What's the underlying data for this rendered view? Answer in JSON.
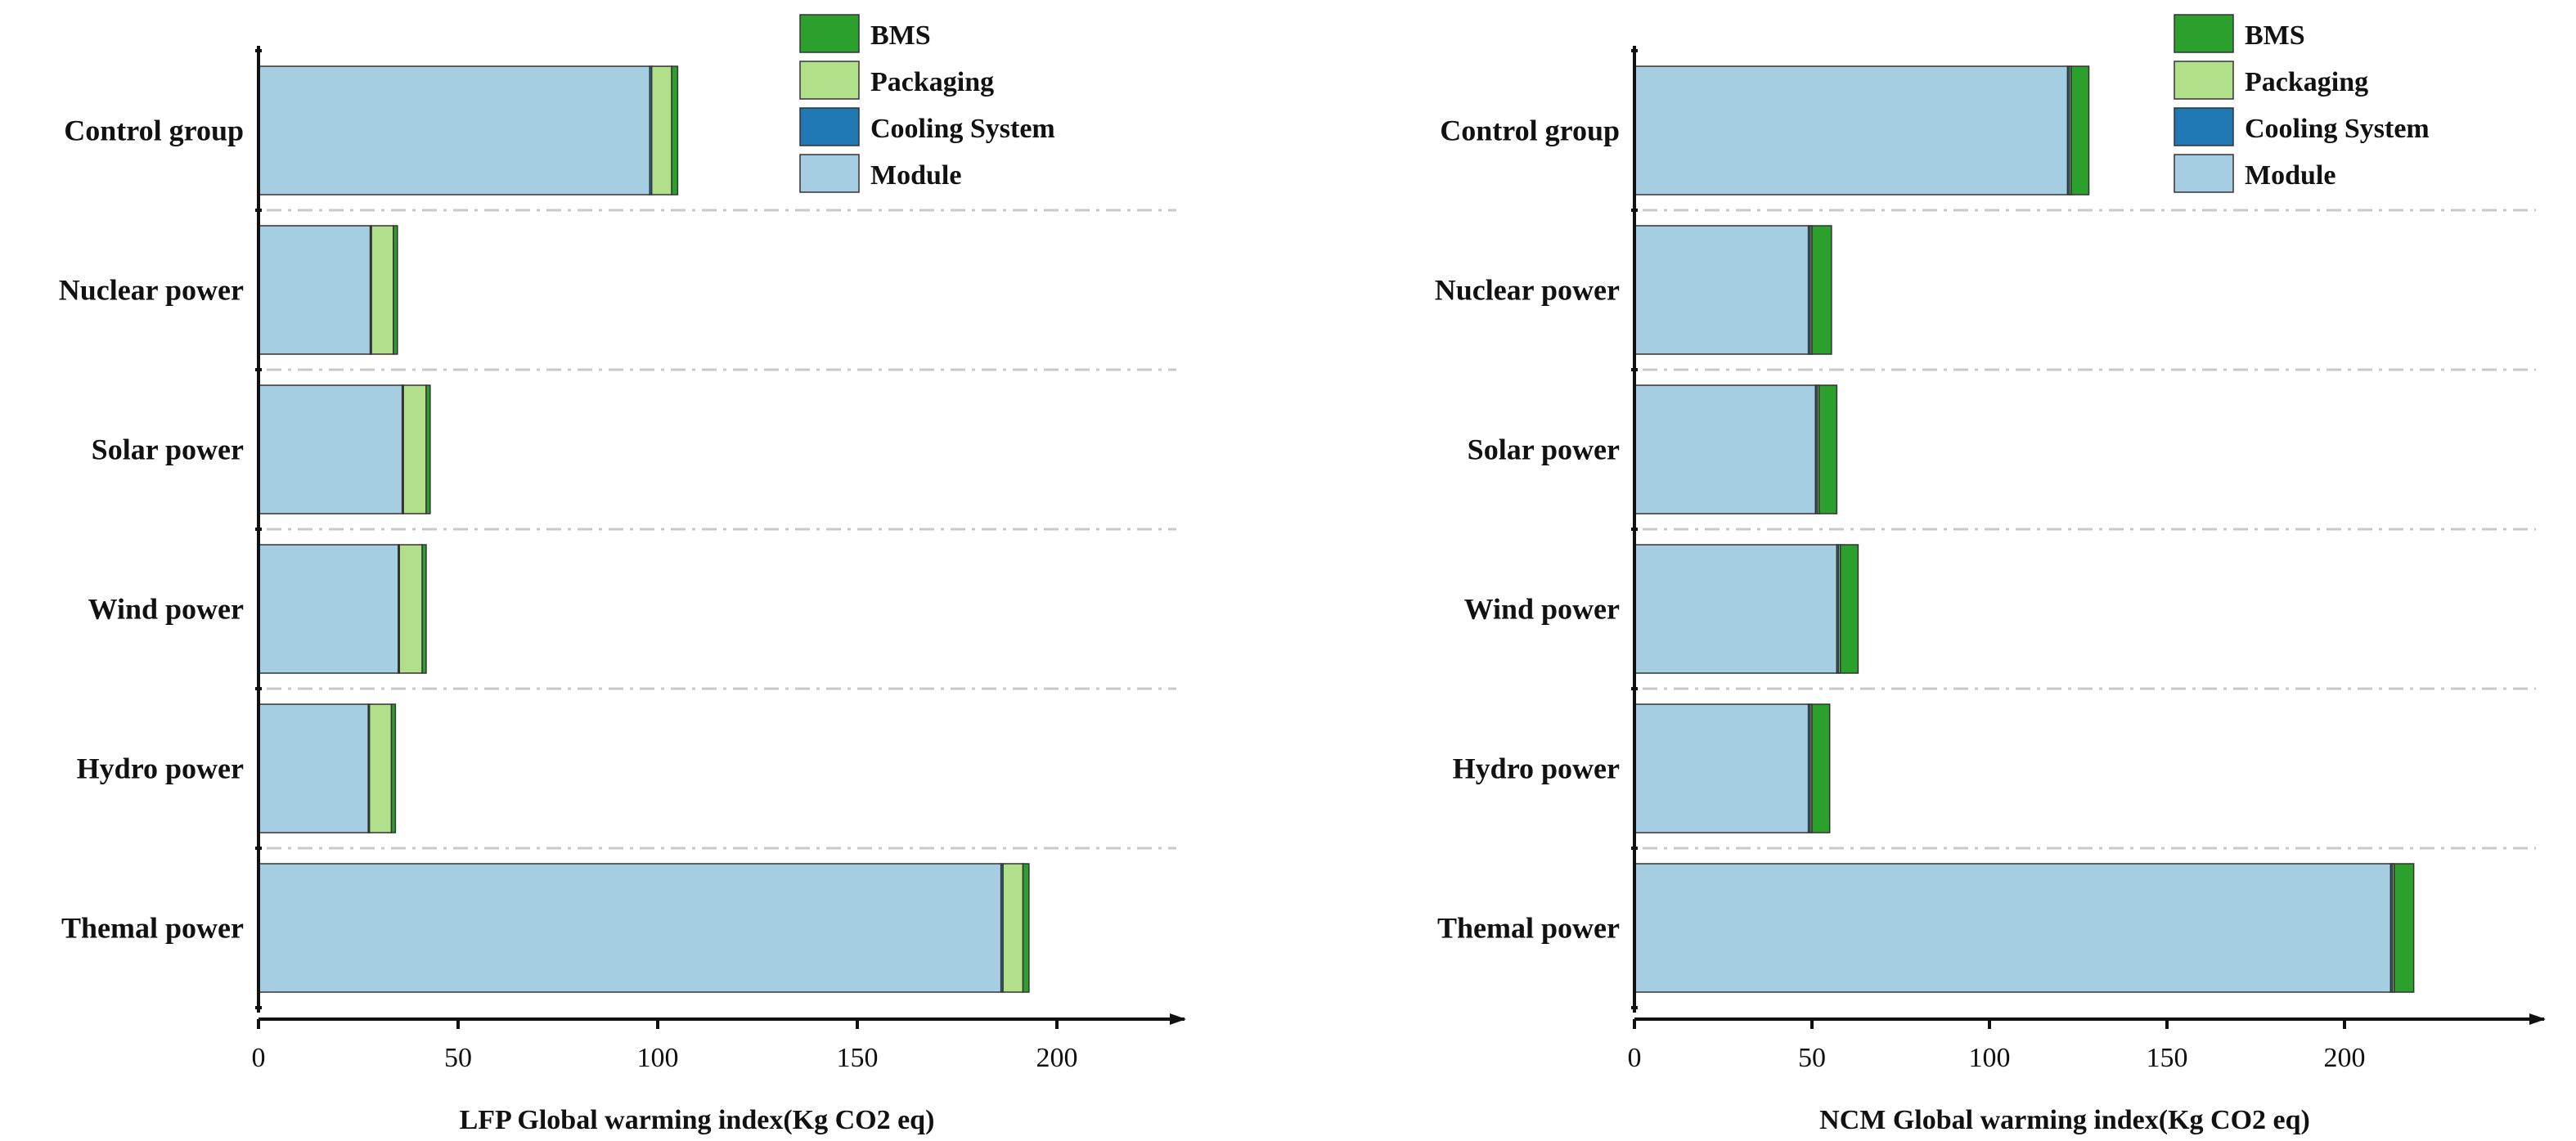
{
  "legend": [
    {
      "key": "bms",
      "label": "BMS",
      "color": "#2ca02c"
    },
    {
      "key": "packaging",
      "label": "Packaging",
      "color": "#b2df8a"
    },
    {
      "key": "cooling",
      "label": "Cooling System",
      "color": "#1f78b4"
    },
    {
      "key": "module",
      "label": "Module",
      "color": "#a6cee3"
    }
  ],
  "chart_data": [
    {
      "type": "bar",
      "orientation": "horizontal",
      "stacked": true,
      "title": "",
      "xlabel": "LFP Global warming index(Kg CO2 eq)",
      "ylabel": "",
      "xlim": [
        0,
        225
      ],
      "xticks": [
        0,
        50,
        100,
        150,
        200
      ],
      "categories": [
        "Control group",
        "Nuclear power",
        "Solar power",
        "Wind power",
        "Hydro power",
        "Themal power"
      ],
      "series": [
        {
          "name": "Module",
          "color": "#a6cee3",
          "values": [
            98,
            28,
            36,
            35,
            27.5,
            186
          ]
        },
        {
          "name": "Cooling System",
          "color": "#1f78b4",
          "values": [
            0.5,
            0.3,
            0.3,
            0.3,
            0.3,
            0.5
          ]
        },
        {
          "name": "Packaging",
          "color": "#b2df8a",
          "values": [
            5,
            5.5,
            5.7,
            5.7,
            5.5,
            5
          ]
        },
        {
          "name": "BMS",
          "color": "#2ca02c",
          "values": [
            1.5,
            1,
            1,
            1,
            1,
            1.5
          ]
        }
      ]
    },
    {
      "type": "bar",
      "orientation": "horizontal",
      "stacked": true,
      "title": "",
      "xlabel": "NCM Global warming index(Kg CO2 eq)",
      "ylabel": "",
      "xlim": [
        0,
        250
      ],
      "xticks": [
        0,
        50,
        100,
        150,
        200
      ],
      "categories": [
        "Control group",
        "Nuclear power",
        "Solar power",
        "Wind power",
        "Hydro power",
        "Themal power"
      ],
      "series": [
        {
          "name": "Module",
          "color": "#a6cee3",
          "values": [
            122,
            49,
            51,
            57,
            49,
            213
          ]
        },
        {
          "name": "Cooling System",
          "color": "#1f78b4",
          "values": [
            0.5,
            0.5,
            0.5,
            0.5,
            0.5,
            0.5
          ]
        },
        {
          "name": "Packaging",
          "color": "#b2df8a",
          "values": [
            0.5,
            0.5,
            0.5,
            0.5,
            0.5,
            0.5
          ]
        },
        {
          "name": "BMS",
          "color": "#2ca02c",
          "values": [
            5,
            5.5,
            5,
            5,
            5,
            5.5
          ]
        }
      ]
    }
  ]
}
